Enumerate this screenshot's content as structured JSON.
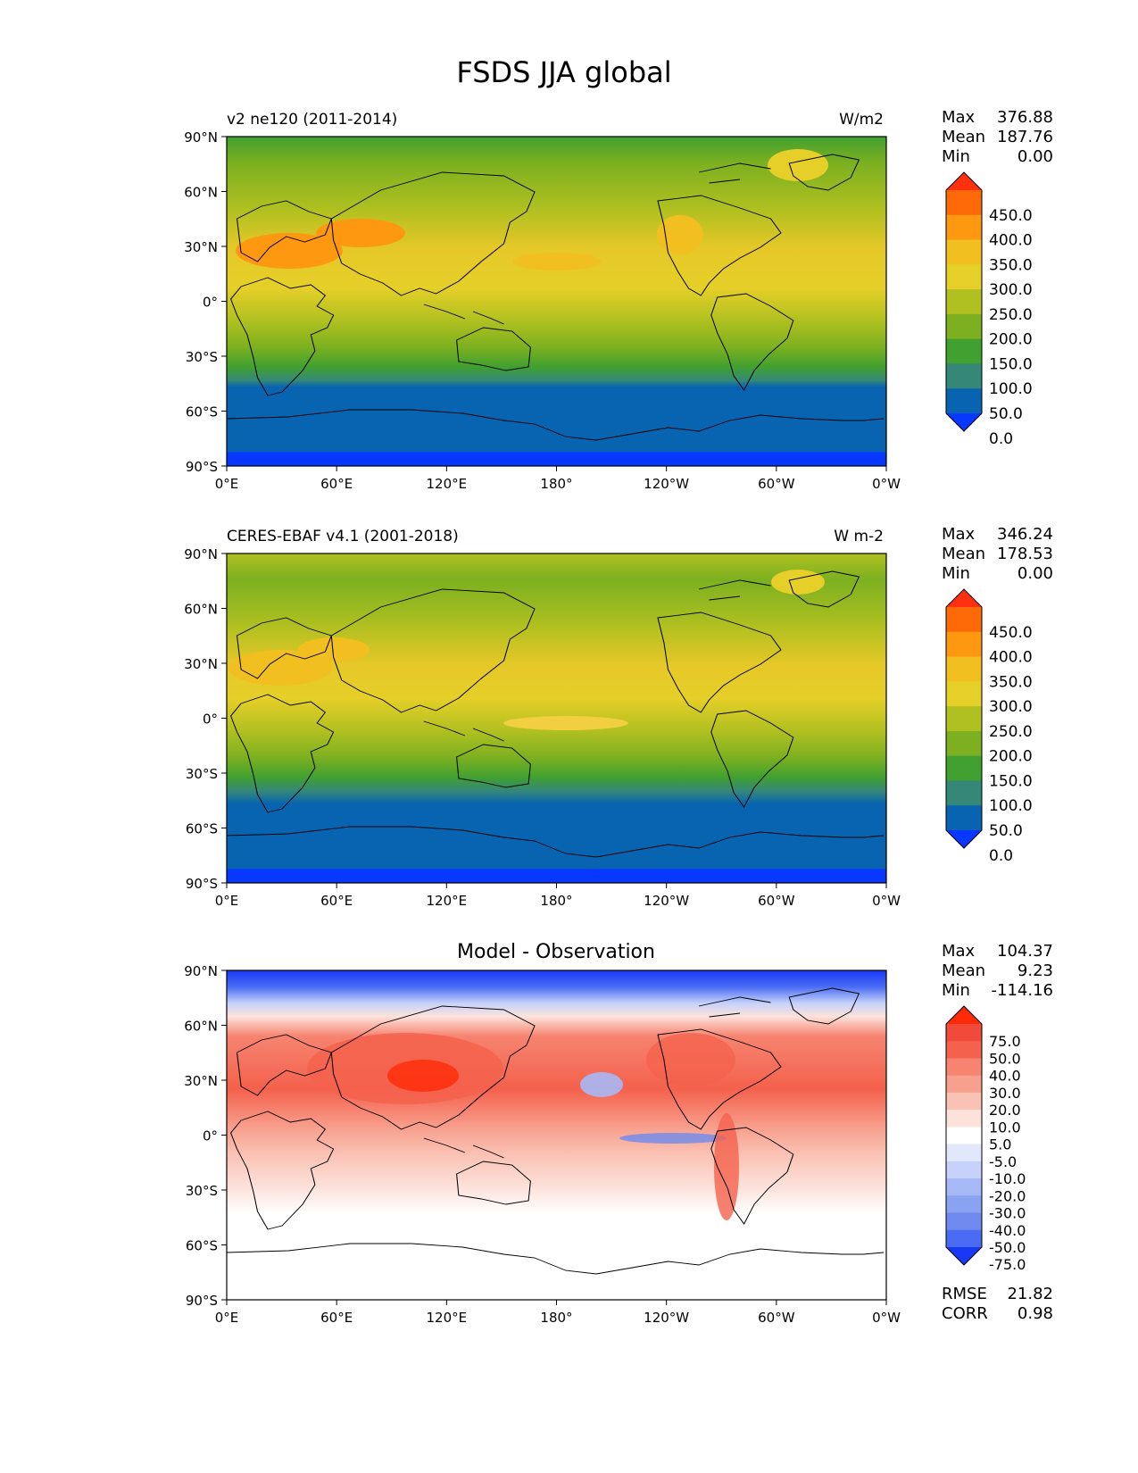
{
  "title": "FSDS JJA global",
  "axes": {
    "lat_labels": [
      "90°N",
      "60°N",
      "30°N",
      "0°",
      "30°S",
      "60°S",
      "90°S"
    ],
    "lon_labels": [
      "0°E",
      "60°E",
      "120°E",
      "180°",
      "120°W",
      "60°W",
      "0°W"
    ]
  },
  "panels": [
    {
      "id": "model",
      "title_left": "v2 ne120 (2011-2014)",
      "title_center": "",
      "units": "W/m2",
      "stats": [
        {
          "label": "Max",
          "value": "376.88"
        },
        {
          "label": "Mean",
          "value": "187.76"
        },
        {
          "label": "Min",
          "value": "0.00"
        }
      ],
      "colorbar": {
        "levels": [
          "450.0",
          "400.0",
          "350.0",
          "300.0",
          "250.0",
          "200.0",
          "150.0",
          "100.0",
          "50.0",
          "0.0"
        ],
        "colors": [
          "#fe3010",
          "#fe6a08",
          "#fd9810",
          "#f2bf20",
          "#e6cf28",
          "#b0c020",
          "#7cb020",
          "#40a030",
          "#358878",
          "#0864b0",
          "#0838ff"
        ]
      }
    },
    {
      "id": "obs",
      "title_left": "CERES-EBAF v4.1 (2001-2018)",
      "title_center": "",
      "units": "W m-2",
      "stats": [
        {
          "label": "Max",
          "value": "346.24"
        },
        {
          "label": "Mean",
          "value": "178.53"
        },
        {
          "label": "Min",
          "value": "0.00"
        }
      ],
      "colorbar": {
        "levels": [
          "450.0",
          "400.0",
          "350.0",
          "300.0",
          "250.0",
          "200.0",
          "150.0",
          "100.0",
          "50.0",
          "0.0"
        ],
        "colors": [
          "#fe3010",
          "#fe6a08",
          "#fd9810",
          "#f2bf20",
          "#e6cf28",
          "#b0c020",
          "#7cb020",
          "#40a030",
          "#358878",
          "#0864b0",
          "#0838ff"
        ]
      }
    },
    {
      "id": "diff",
      "title_left": "",
      "title_center": "Model - Observation",
      "units": "",
      "stats": [
        {
          "label": "Max",
          "value": "104.37"
        },
        {
          "label": "Mean",
          "value": "9.23"
        },
        {
          "label": "Min",
          "value": "-114.16"
        }
      ],
      "colorbar": {
        "levels": [
          "75.0",
          "50.0",
          "40.0",
          "30.0",
          "20.0",
          "10.0",
          "5.0",
          "-5.0",
          "-10.0",
          "-20.0",
          "-30.0",
          "-40.0",
          "-50.0",
          "-75.0"
        ],
        "colors": [
          "#ff2a08",
          "#f24a3a",
          "#f4614c",
          "#f68470",
          "#f8a08e",
          "#fac2b4",
          "#fde2dc",
          "#ffffff",
          "#e2e8fc",
          "#c6d2fa",
          "#a6b8f6",
          "#8aa2f2",
          "#6e8aee",
          "#4a6cf4",
          "#1838f8"
        ]
      },
      "extra_stats": [
        {
          "label": "RMSE",
          "value": "21.82"
        },
        {
          "label": "CORR",
          "value": "0.98"
        }
      ]
    }
  ]
}
